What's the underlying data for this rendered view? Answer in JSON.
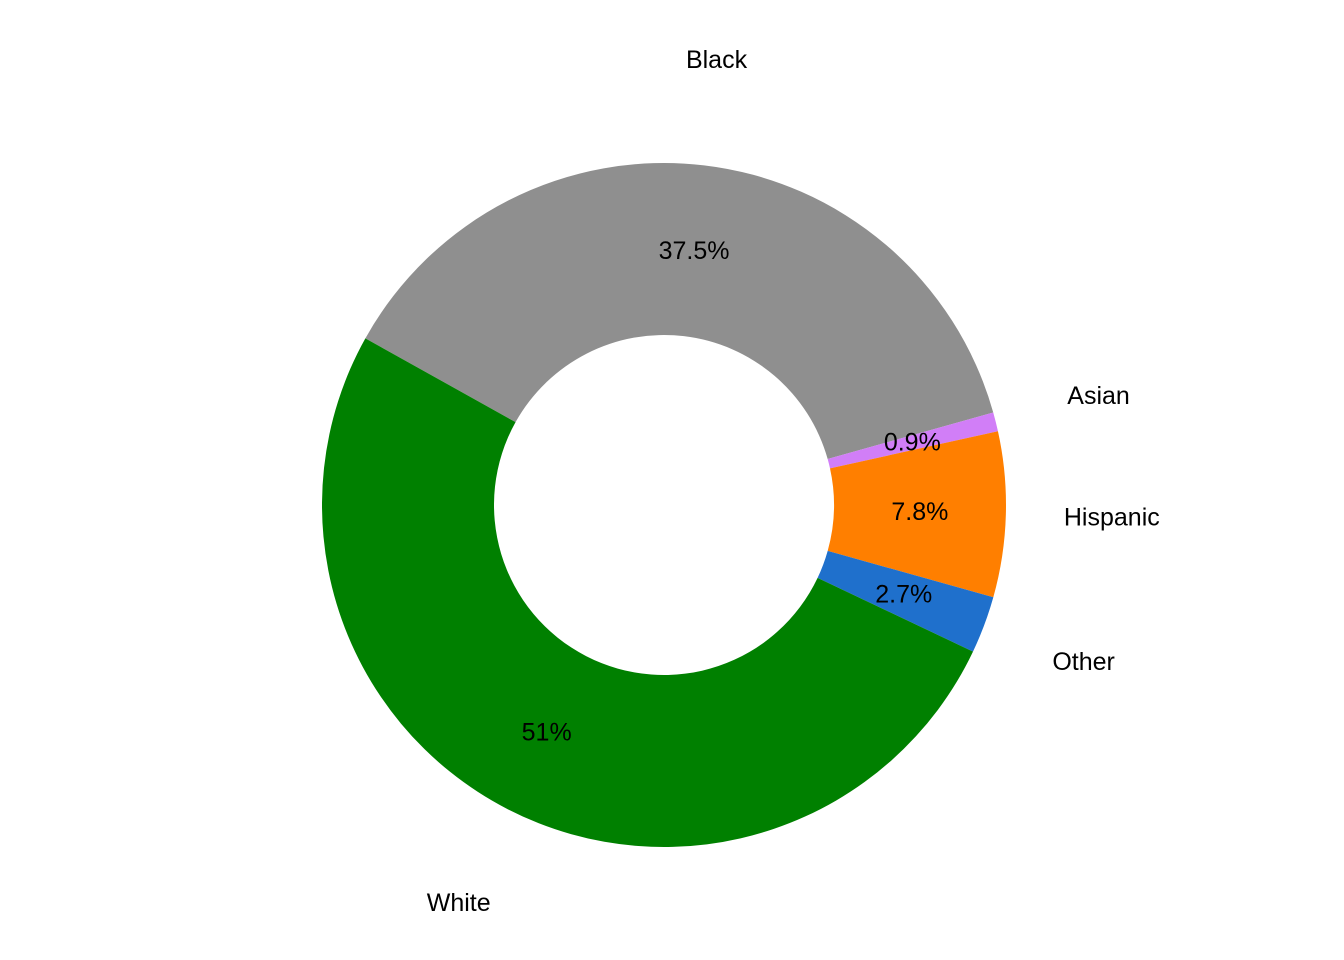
{
  "chart_data": {
    "type": "pie",
    "donut": true,
    "title": "",
    "categories": [
      "Black",
      "Asian",
      "Hispanic",
      "Other",
      "White"
    ],
    "values": [
      37.5,
      0.9,
      7.8,
      2.7,
      51
    ],
    "labels": [
      "37.5%",
      "0.9%",
      "7.8%",
      "2.7%",
      "51%"
    ],
    "colors": [
      "#8f8f8f",
      "#d17ef7",
      "#ff7f00",
      "#1f70cc",
      "#008000"
    ],
    "legend": "none"
  }
}
